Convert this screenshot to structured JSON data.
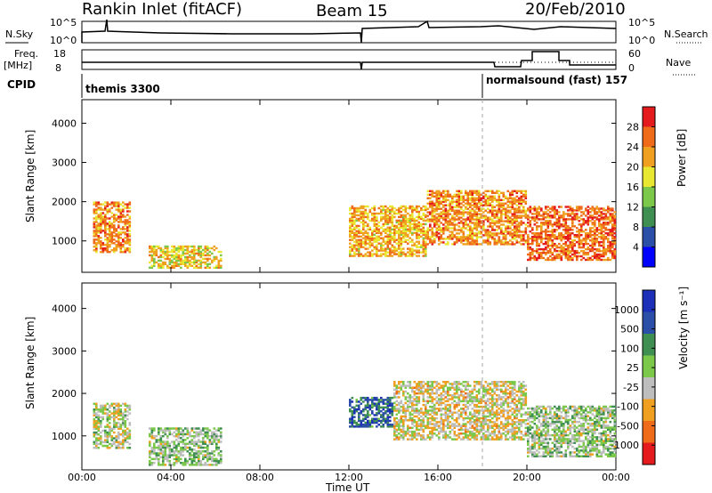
{
  "header": {
    "title": "Rankin Inlet (fitACF)",
    "beam": "Beam 15",
    "date": "20/Feb/2010"
  },
  "top_panels": {
    "nsky_label": "N.Sky",
    "nsearch_label": "N.Search",
    "noise_ticks_left": [
      "10^5",
      "10^0"
    ],
    "noise_ticks_right": [
      "10^5",
      "10^0"
    ],
    "freq_label_line1": "Freq.",
    "freq_label_line2": "[MHz]",
    "freq_ticks": [
      "18",
      "8"
    ],
    "nave_label": "Nave",
    "nave_ticks": [
      "60",
      "0"
    ],
    "cpid_label": "CPID",
    "cpid_segments": [
      {
        "text": "themis 3300",
        "start": "00:00"
      },
      {
        "text": "normalsound (fast) 157",
        "start": "18:00"
      }
    ]
  },
  "chart_data": [
    {
      "type": "heatmap",
      "title": "",
      "xlabel": "",
      "ylabel": "Slant Range [km]",
      "x_range": [
        "00:00",
        "24:00"
      ],
      "ylim": [
        200,
        4600
      ],
      "yticks": [
        "1000",
        "2000",
        "3000",
        "4000"
      ],
      "colorbar": {
        "label": "Power [dB]",
        "ticks": [
          "28",
          "24",
          "20",
          "16",
          "12",
          "8",
          "4"
        ],
        "range": [
          0,
          30
        ],
        "colors": [
          "#0000ff",
          "#2b4ea6",
          "#3f8f52",
          "#7cc84b",
          "#e8e832",
          "#f0a020",
          "#ef6b1a",
          "#e41a1c"
        ]
      },
      "echo_regions": [
        {
          "t_start": 0.5,
          "t_end": 2.2,
          "r_low": 700,
          "r_high": 2000,
          "value": 22
        },
        {
          "t_start": 3.0,
          "t_end": 6.3,
          "r_low": 300,
          "r_high": 900,
          "value": 18
        },
        {
          "t_start": 12.0,
          "t_end": 15.5,
          "r_low": 600,
          "r_high": 1900,
          "value": 20
        },
        {
          "t_start": 15.5,
          "t_end": 20.0,
          "r_low": 900,
          "r_high": 2300,
          "value": 22
        },
        {
          "t_start": 20.0,
          "t_end": 24.0,
          "r_low": 500,
          "r_high": 1900,
          "value": 24
        }
      ]
    },
    {
      "type": "heatmap",
      "title": "",
      "xlabel": "Time UT",
      "ylabel": "Slant Range [km]",
      "x_range": [
        "00:00",
        "24:00"
      ],
      "xticks": [
        "00:00",
        "04:00",
        "08:00",
        "12:00",
        "16:00",
        "20:00",
        "00:00"
      ],
      "ylim": [
        200,
        4600
      ],
      "yticks": [
        "1000",
        "2000",
        "3000",
        "4000"
      ],
      "colorbar": {
        "label": "Velocity [m s⁻¹]",
        "ticks": [
          "1000",
          "500",
          "100",
          "25",
          "-25",
          "-100",
          "-500",
          "-1000"
        ],
        "range": [
          -1200,
          1200
        ],
        "colors": [
          "#e41a1c",
          "#ef6b1a",
          "#f0a020",
          "#bdbdbd",
          "#7cc84b",
          "#3f8f52",
          "#2b4ea6",
          "#1b2fb8"
        ]
      },
      "echo_regions": [
        {
          "t_start": 0.5,
          "t_end": 2.2,
          "r_low": 700,
          "r_high": 1800,
          "value": -60
        },
        {
          "t_start": 3.0,
          "t_end": 6.3,
          "r_low": 300,
          "r_high": 1200,
          "value": 80
        },
        {
          "t_start": 12.0,
          "t_end": 14.0,
          "r_low": 1200,
          "r_high": 1900,
          "value": 700
        },
        {
          "t_start": 14.0,
          "t_end": 20.0,
          "r_low": 900,
          "r_high": 2300,
          "value": -200
        },
        {
          "t_start": 20.0,
          "t_end": 24.0,
          "r_low": 500,
          "r_high": 1700,
          "value": 60
        }
      ]
    }
  ]
}
